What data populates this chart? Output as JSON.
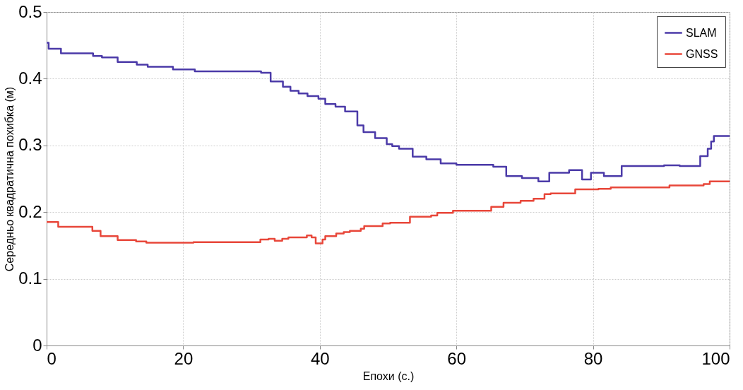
{
  "chart_data": {
    "type": "step",
    "xlabel": "Епохи (с.)",
    "ylabel": "Середньо квадратична похибка (м)",
    "xlim": [
      0,
      100
    ],
    "xticks": [
      0,
      20,
      40,
      60,
      80,
      100
    ],
    "ylim": [
      0,
      0.5
    ],
    "yticks": [
      0,
      0.1,
      0.2,
      0.3,
      0.4,
      0.5
    ],
    "grid": true,
    "legend": "top right",
    "line_style": "solid",
    "series": [
      {
        "name": "SLAM",
        "color": "#4b3aa8",
        "x": [
          0,
          0.3,
          2.1,
          6.8,
          8.1,
          10.4,
          13.2,
          14.8,
          18.5,
          21.7,
          31.4,
          32.8,
          34.6,
          35.7,
          36.9,
          38.2,
          39.8,
          40.8,
          42.3,
          43.7,
          45.5,
          46.4,
          48.1,
          49.8,
          50.6,
          51.6,
          53.6,
          55.6,
          57.7,
          60,
          65.4,
          67.3,
          69.6,
          72,
          73.6,
          76.5,
          78.4,
          79.7,
          81.6,
          84.2,
          90.4,
          92.7,
          95.7,
          96.8,
          97.3,
          97.7,
          100
        ],
        "values": [
          0.454,
          0.445,
          0.438,
          0.434,
          0.432,
          0.425,
          0.421,
          0.418,
          0.414,
          0.411,
          0.409,
          0.396,
          0.388,
          0.382,
          0.378,
          0.374,
          0.37,
          0.362,
          0.358,
          0.351,
          0.33,
          0.32,
          0.311,
          0.302,
          0.299,
          0.295,
          0.283,
          0.279,
          0.273,
          0.271,
          0.268,
          0.254,
          0.251,
          0.246,
          0.259,
          0.263,
          0.249,
          0.259,
          0.254,
          0.269,
          0.27,
          0.269,
          0.284,
          0.295,
          0.306,
          0.314,
          0.314
        ]
      },
      {
        "name": "GNSS",
        "color": "#e8473a",
        "x": [
          0,
          1.7,
          6.7,
          7.9,
          10.4,
          13.1,
          14.6,
          21.5,
          31.3,
          32.5,
          33.4,
          34.5,
          35.4,
          38.1,
          38.8,
          39.4,
          40.4,
          40.8,
          42.4,
          43.5,
          44.4,
          46,
          46.5,
          49.2,
          50.3,
          53.2,
          56.3,
          57.2,
          59.5,
          65.1,
          66.9,
          69.4,
          71.3,
          72.9,
          73.8,
          77.4,
          80.8,
          82.6,
          91.2,
          96.2,
          97.1,
          100
        ],
        "values": [
          0.185,
          0.178,
          0.172,
          0.164,
          0.158,
          0.156,
          0.154,
          0.155,
          0.159,
          0.16,
          0.157,
          0.16,
          0.162,
          0.165,
          0.162,
          0.153,
          0.159,
          0.164,
          0.168,
          0.17,
          0.172,
          0.175,
          0.179,
          0.183,
          0.184,
          0.193,
          0.195,
          0.199,
          0.202,
          0.208,
          0.214,
          0.217,
          0.22,
          0.227,
          0.228,
          0.234,
          0.235,
          0.237,
          0.24,
          0.242,
          0.246,
          0.246
        ]
      }
    ]
  }
}
